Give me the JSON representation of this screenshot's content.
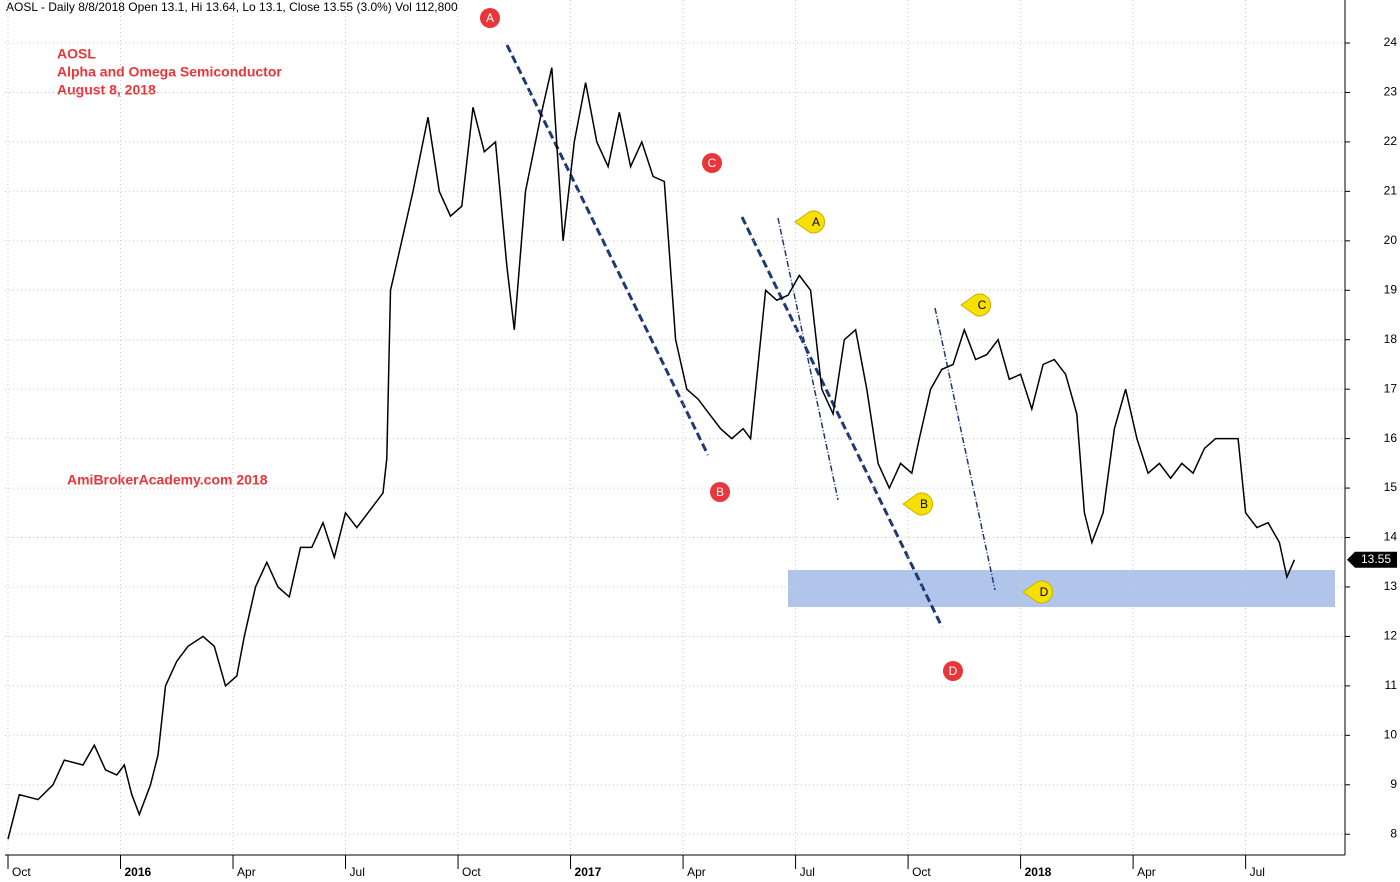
{
  "header": "AOSL - Daily 8/8/2018 Open 13.1, Hi 13.64, Lo 13.1, Close 13.55 (3.0%) Vol 112,800",
  "chart_data": {
    "type": "line",
    "title": "AOSL",
    "subtitle": [
      "Alpha and Omega Semiconductor",
      "August 8, 2018"
    ],
    "annotations": [
      "AmiBrokerAcademy.com  2018"
    ],
    "last_value_label": "13.55",
    "red_markers": [
      "A",
      "C",
      "B",
      "D"
    ],
    "yellow_markers": [
      "A",
      "C",
      "B",
      "D"
    ],
    "color": "#000000",
    "grid": true,
    "xlim": [
      -0.08,
      35.65
    ],
    "ylim": [
      7.58,
      24.87
    ],
    "yticks": [
      8,
      9,
      10,
      11,
      12,
      13,
      14,
      15,
      16,
      17,
      18,
      19,
      20,
      21,
      22,
      23,
      24
    ],
    "xticks": [
      {
        "value": 0,
        "label": "Oct"
      },
      {
        "value": 3,
        "label": "2016"
      },
      {
        "value": 6,
        "label": "Apr"
      },
      {
        "value": 9,
        "label": "Jul"
      },
      {
        "value": 12,
        "label": "Oct"
      },
      {
        "value": 15,
        "label": "2017"
      },
      {
        "value": 18,
        "label": "Apr"
      },
      {
        "value": 21,
        "label": "Jul"
      },
      {
        "value": 24,
        "label": "Oct"
      },
      {
        "value": 27,
        "label": "2018"
      },
      {
        "value": 30,
        "label": "Apr"
      },
      {
        "value": 33,
        "label": "Jul"
      }
    ],
    "x": [
      0,
      0.3,
      0.8,
      1.2,
      1.5,
      2.0,
      2.3,
      2.6,
      2.9,
      3.1,
      3.3,
      3.5,
      3.8,
      4.0,
      4.2,
      4.5,
      4.8,
      5.2,
      5.5,
      5.8,
      6.1,
      6.3,
      6.6,
      6.9,
      7.2,
      7.5,
      7.8,
      8.1,
      8.4,
      8.7,
      9.0,
      9.3,
      9.6,
      10.0,
      10.1,
      10.2,
      10.5,
      10.8,
      11.2,
      11.5,
      11.8,
      12.1,
      12.4,
      12.7,
      13.0,
      13.3,
      13.5,
      13.8,
      14.2,
      14.5,
      14.8,
      15.1,
      15.4,
      15.7,
      16.0,
      16.3,
      16.6,
      16.9,
      17.2,
      17.5,
      17.8,
      18.1,
      18.4,
      18.7,
      19.0,
      19.3,
      19.6,
      19.8,
      20.0,
      20.2,
      20.5,
      20.8,
      21.1,
      21.4,
      21.7,
      22.0,
      22.3,
      22.6,
      22.9,
      23.2,
      23.5,
      23.8,
      24.1,
      24.3,
      24.6,
      24.9,
      25.2,
      25.5,
      25.8,
      26.1,
      26.4,
      26.7,
      27.0,
      27.3,
      27.6,
      27.9,
      28.2,
      28.5,
      28.7,
      28.9,
      29.2,
      29.5,
      29.8,
      30.1,
      30.4,
      30.7,
      31.0,
      31.3,
      31.6,
      31.9,
      32.2,
      32.5,
      32.8,
      33.0,
      33.3,
      33.6,
      33.9,
      34.1,
      34.3
    ],
    "values": [
      7.9,
      8.8,
      8.7,
      9.0,
      9.5,
      9.4,
      9.8,
      9.3,
      9.2,
      9.4,
      8.8,
      8.4,
      9.0,
      9.6,
      11.0,
      11.5,
      11.8,
      12.0,
      11.8,
      11.0,
      11.2,
      12.0,
      13.0,
      13.5,
      13.0,
      12.8,
      13.8,
      13.8,
      14.3,
      13.6,
      14.5,
      14.2,
      14.5,
      14.9,
      15.6,
      19.0,
      20.0,
      21.0,
      22.5,
      21.0,
      20.5,
      20.7,
      22.7,
      21.8,
      22.0,
      19.5,
      18.2,
      21.0,
      22.5,
      23.5,
      20.0,
      22.0,
      23.2,
      22.0,
      21.5,
      22.6,
      21.5,
      22.0,
      21.3,
      21.2,
      18.0,
      17.0,
      16.8,
      16.5,
      16.2,
      16.0,
      16.2,
      16.0,
      17.5,
      19.0,
      18.8,
      18.9,
      19.3,
      19.0,
      17.0,
      16.5,
      18.0,
      18.2,
      17.0,
      15.5,
      15.0,
      15.5,
      15.3,
      16.0,
      17.0,
      17.4,
      17.5,
      18.2,
      17.6,
      17.7,
      18.0,
      17.2,
      17.3,
      16.6,
      17.5,
      17.6,
      17.3,
      16.5,
      14.5,
      13.9,
      14.5,
      16.2,
      17.0,
      16.0,
      15.3,
      15.5,
      15.2,
      15.5,
      15.3,
      15.8,
      16.0,
      16.0,
      16.0,
      14.5,
      14.2,
      14.3,
      13.9,
      13.2,
      13.55
    ]
  }
}
